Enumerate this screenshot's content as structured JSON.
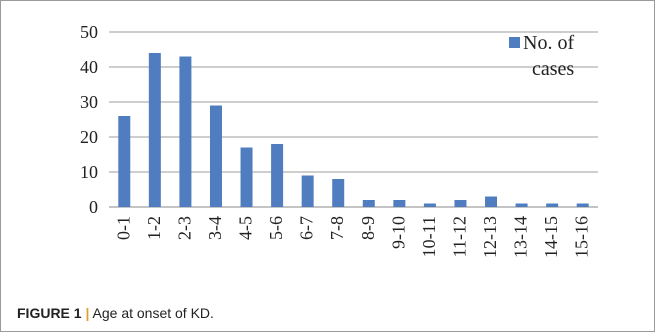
{
  "chart_data": {
    "type": "bar",
    "categories": [
      "0-1",
      "1-2",
      "2-3",
      "3-4",
      "4-5",
      "5-6",
      "6-7",
      "7-8",
      "8-9",
      "9-10",
      "10-11",
      "11-12",
      "12-13",
      "13-14",
      "14-15",
      "15-16"
    ],
    "series": [
      {
        "name": "No. of cases",
        "values": [
          26,
          44,
          43,
          29,
          17,
          18,
          9,
          8,
          2,
          2,
          1,
          2,
          3,
          1,
          1,
          1
        ]
      }
    ],
    "ylim": [
      0,
      50
    ],
    "yticks": [
      0,
      10,
      20,
      30,
      40,
      50
    ],
    "grid": true,
    "legend_position": "top-right",
    "bar_color": "#4f7dc0"
  },
  "legend": {
    "line1": "No. of",
    "line2": "cases"
  },
  "caption": {
    "label": "FIGURE 1",
    "separator": "|",
    "text": "Age at onset of KD."
  }
}
